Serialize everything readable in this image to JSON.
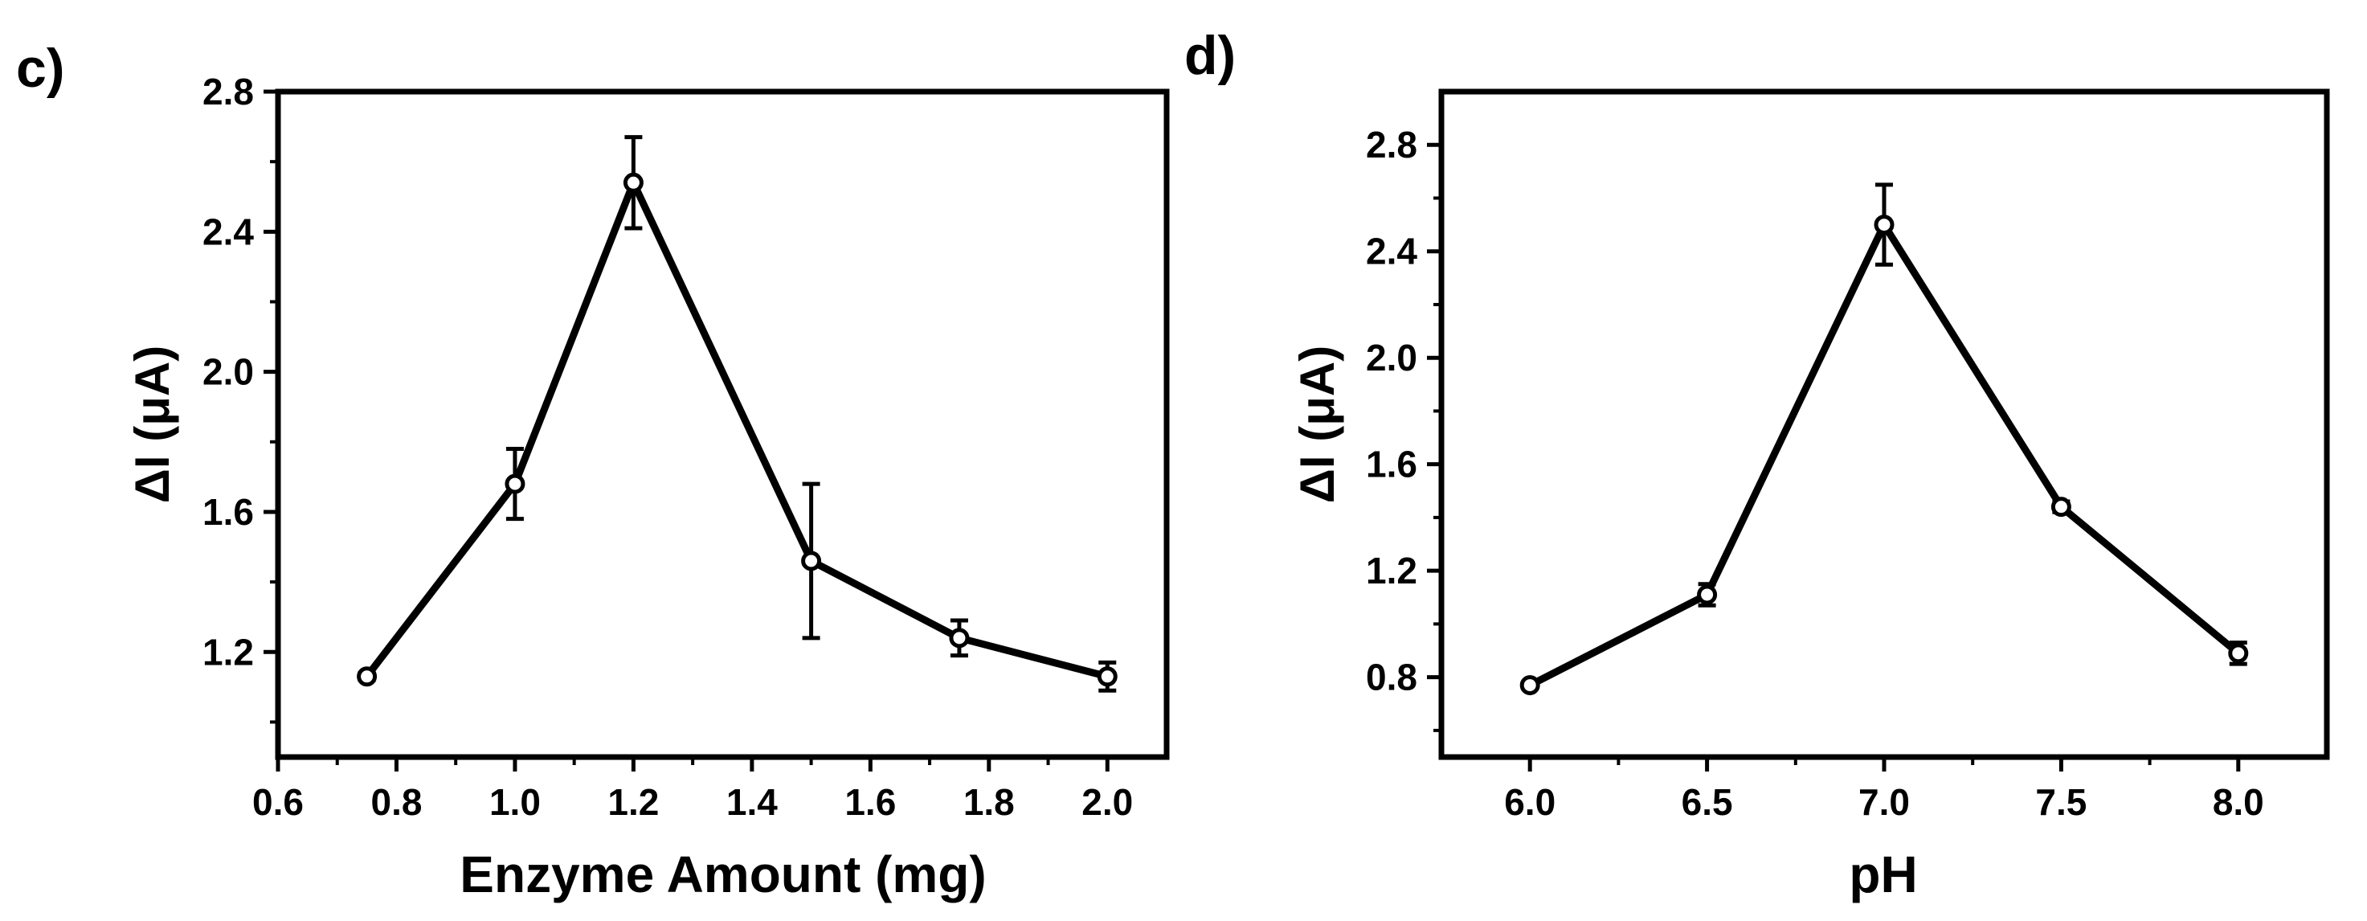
{
  "figure": {
    "panels": [
      "c)",
      "d)"
    ]
  },
  "chart_data": [
    {
      "type": "line",
      "panel_label": "c)",
      "xlabel": "Enzyme Amount (mg)",
      "ylabel": "ΔI (μA)",
      "xlim": [
        0.6,
        2.1
      ],
      "ylim": [
        0.9,
        2.8
      ],
      "xticks": [
        0.6,
        0.8,
        1.0,
        1.2,
        1.4,
        1.6,
        1.8,
        2.0
      ],
      "xtick_labels": [
        "0.6",
        "0.8",
        "1.0",
        "1.2",
        "1.4",
        "1.6",
        "1.8",
        "2.0"
      ],
      "yticks": [
        1.2,
        1.6,
        2.0,
        2.4,
        2.8
      ],
      "ytick_labels": [
        "1.2",
        "1.6",
        "2.0",
        "2.4",
        "2.8"
      ],
      "x": [
        0.75,
        1.0,
        1.2,
        1.5,
        1.75,
        2.0
      ],
      "y": [
        1.13,
        1.68,
        2.54,
        1.46,
        1.24,
        1.13
      ],
      "error": [
        0.01,
        0.1,
        0.13,
        0.22,
        0.05,
        0.04
      ],
      "color": "#000000"
    },
    {
      "type": "line",
      "panel_label": "d)",
      "xlabel": "pH",
      "ylabel": "ΔI (μA)",
      "xlim": [
        5.75,
        8.25
      ],
      "ylim": [
        0.5,
        3.0
      ],
      "xticks": [
        6.0,
        6.5,
        7.0,
        7.5,
        8.0
      ],
      "xtick_labels": [
        "6.0",
        "6.5",
        "7.0",
        "7.5",
        "8.0"
      ],
      "yticks": [
        0.8,
        1.2,
        1.6,
        2.0,
        2.4,
        2.8
      ],
      "ytick_labels": [
        "0.8",
        "1.2",
        "1.6",
        "2.0",
        "2.4",
        "2.8"
      ],
      "x": [
        6.0,
        6.5,
        7.0,
        7.5,
        8.0
      ],
      "y": [
        0.77,
        1.11,
        2.5,
        1.44,
        0.89
      ],
      "error": [
        0.01,
        0.04,
        0.15,
        0.02,
        0.04
      ],
      "color": "#000000"
    }
  ]
}
